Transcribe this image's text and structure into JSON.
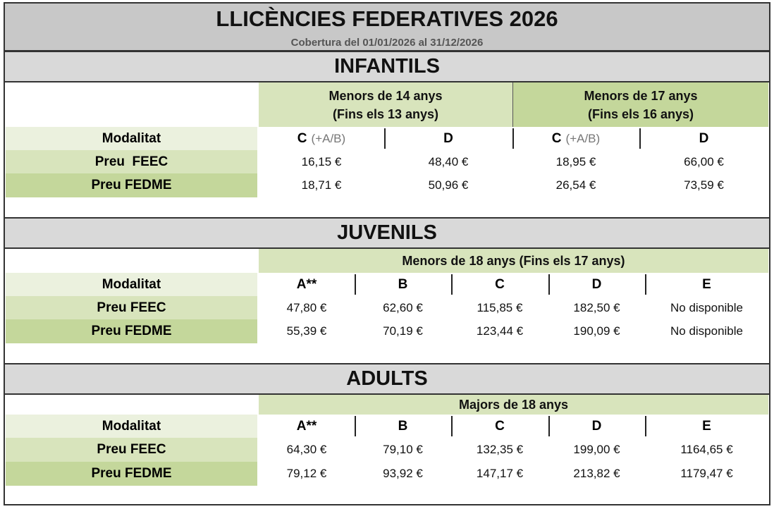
{
  "header": {
    "title": "LLICÈNCIES FEDERATIVES 2026",
    "subtitle": "Cobertura del 01/01/2026 al 31/12/2026"
  },
  "sections": [
    {
      "title": "INFANTILS",
      "groups": [
        {
          "line1": "Menors de 14 anys",
          "line2": "(Fins els 13 anys)"
        },
        {
          "line1": "Menors de 17 anys",
          "line2": "(Fins els 16 anys)"
        }
      ],
      "modality_label": "Modalitat",
      "columns": [
        {
          "code": "C",
          "note": "(+A/B)"
        },
        {
          "code": "D"
        },
        {
          "code": "C",
          "note": "(+A/B)"
        },
        {
          "code": "D"
        }
      ],
      "rows": [
        {
          "label": "Preu  FEEC",
          "values": [
            "16,15 €",
            "48,40 €",
            "18,95 €",
            "66,00 €"
          ]
        },
        {
          "label": "Preu FEDME",
          "values": [
            "18,71 €",
            "50,96 €",
            "26,54 €",
            "73,59 €"
          ]
        }
      ]
    },
    {
      "title": "JUVENILS",
      "groups": [
        {
          "line1": "Menors de 18 anys (Fins els 17 anys)"
        }
      ],
      "modality_label": "Modalitat",
      "columns": [
        {
          "code": "A**"
        },
        {
          "code": "B"
        },
        {
          "code": "C"
        },
        {
          "code": "D"
        },
        {
          "code": "E"
        }
      ],
      "rows": [
        {
          "label": "Preu FEEC",
          "values": [
            "47,80 €",
            "62,60 €",
            "115,85 €",
            "182,50 €",
            "No disponible"
          ]
        },
        {
          "label": "Preu FEDME",
          "values": [
            "55,39 €",
            "70,19 €",
            "123,44 €",
            "190,09 €",
            "No disponible"
          ]
        }
      ]
    },
    {
      "title": "ADULTS",
      "groups": [
        {
          "line1": "Majors de 18 anys"
        }
      ],
      "modality_label": "Modalitat",
      "columns": [
        {
          "code": "A**"
        },
        {
          "code": "B"
        },
        {
          "code": "C"
        },
        {
          "code": "D"
        },
        {
          "code": "E"
        }
      ],
      "rows": [
        {
          "label": "Preu FEEC",
          "values": [
            "64,30 €",
            "79,10 €",
            "132,35 €",
            "199,00 €",
            "1164,65 €"
          ]
        },
        {
          "label": "Preu FEDME",
          "values": [
            "79,12 €",
            "93,92 €",
            "147,17 €",
            "213,82 €",
            "1179,47 €"
          ]
        }
      ]
    }
  ]
}
